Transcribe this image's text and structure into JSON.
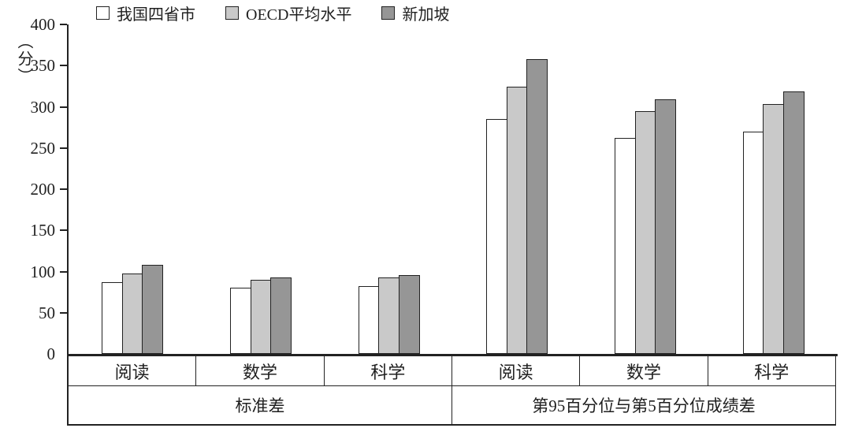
{
  "chart_data": {
    "type": "bar",
    "title": "",
    "ylabel": "（分）",
    "xlabel": "",
    "ylim": [
      0,
      400
    ],
    "yticks": [
      0,
      50,
      100,
      150,
      200,
      250,
      300,
      350,
      400
    ],
    "grid": false,
    "legend_position": "top",
    "categories": [
      "阅读",
      "数学",
      "科学",
      "阅读",
      "数学",
      "科学"
    ],
    "group_labels": [
      "标准差",
      "第95百分位与第5百分位成绩差"
    ],
    "series": [
      {
        "name": "我国四省市",
        "color": "#ffffff",
        "values": [
          87,
          80,
          82,
          285,
          262,
          270
        ]
      },
      {
        "name": "OECD平均水平",
        "color": "#c9c9c9",
        "values": [
          98,
          90,
          93,
          324,
          295,
          303
        ]
      },
      {
        "name": "新加坡",
        "color": "#969696",
        "values": [
          108,
          93,
          96,
          358,
          309,
          319
        ]
      }
    ]
  },
  "colors": {
    "axis": "#222222",
    "bar_border": "#222222"
  }
}
